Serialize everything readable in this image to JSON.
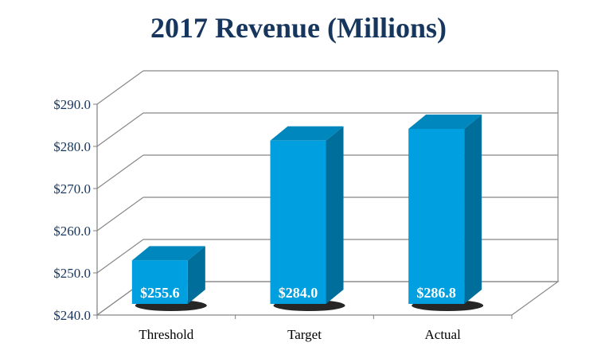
{
  "chart_data": {
    "type": "bar",
    "title": "2017 Revenue (Millions)",
    "categories": [
      "Threshold",
      "Target",
      "Actual"
    ],
    "values": [
      255.6,
      284.0,
      286.8
    ],
    "data_labels": [
      "$255.6",
      "$284.0",
      "$286.8"
    ],
    "yticks": [
      "$240.0",
      "$250.0",
      "$260.0",
      "$270.0",
      "$280.0",
      "$290.0"
    ],
    "ylim": [
      240,
      290
    ],
    "grid": true,
    "three_d": true,
    "xlabel": "",
    "ylabel": "",
    "colors": {
      "bar_front": "#00a0e0",
      "bar_side": "#006e9a",
      "bar_top": "#0087bd",
      "title": "#17365d",
      "grid": "#888888"
    }
  }
}
